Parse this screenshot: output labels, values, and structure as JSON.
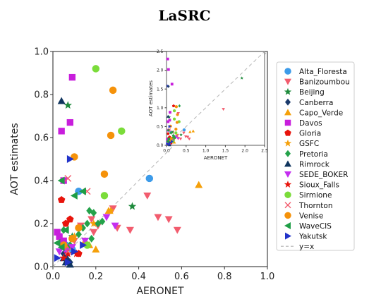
{
  "title": "LaSRC",
  "chart_data": {
    "type": "scatter",
    "title": "LaSRC",
    "xlabel": "AERONET",
    "ylabel": "AOT estimates",
    "xlim": [
      0,
      1.0
    ],
    "ylim": [
      0,
      1.0
    ],
    "xticks": [
      "0.0",
      "0.2",
      "0.4",
      "0.6",
      "0.8",
      "1.0"
    ],
    "yticks": [
      "0.0",
      "0.2",
      "0.4",
      "0.6",
      "0.8",
      "1.0"
    ],
    "grid": false,
    "legend_position": "right",
    "reference_line": {
      "name": "y=x",
      "style": "dashed",
      "color": "#b0b0b0"
    },
    "series": [
      {
        "name": "Alta_Floresta",
        "marker": "circle",
        "color": "#3d9be9",
        "points": [
          [
            0.45,
            0.41
          ],
          [
            0.12,
            0.35
          ],
          [
            0.06,
            0.1
          ],
          [
            0.09,
            0.08
          ]
        ]
      },
      {
        "name": "Banizoumbou",
        "marker": "triangle-down",
        "color": "#f25c6e",
        "points": [
          [
            0.58,
            0.17
          ],
          [
            0.54,
            0.22
          ],
          [
            0.49,
            0.23
          ],
          [
            0.44,
            0.33
          ],
          [
            0.36,
            0.17
          ],
          [
            0.3,
            0.18
          ],
          [
            0.28,
            0.27
          ],
          [
            0.21,
            0.19
          ],
          [
            0.19,
            0.16
          ],
          [
            0.18,
            0.22
          ],
          [
            0.13,
            0.19
          ],
          [
            0.1,
            0.12
          ],
          [
            0.07,
            0.09
          ]
        ]
      },
      {
        "name": "Beijing",
        "marker": "star",
        "color": "#1e8a3c",
        "points": [
          [
            0.07,
            0.75
          ],
          [
            0.37,
            0.28
          ],
          [
            0.09,
            0.14
          ]
        ]
      },
      {
        "name": "Canberra",
        "marker": "diamond",
        "color": "#1a3a6b",
        "points": [
          [
            0.07,
            0.03
          ],
          [
            0.06,
            0.05
          ],
          [
            0.08,
            0.02
          ],
          [
            0.05,
            0.06
          ]
        ]
      },
      {
        "name": "Capo_Verde",
        "marker": "triangle-up",
        "color": "#f5a00a",
        "points": [
          [
            0.68,
            0.38
          ],
          [
            0.26,
            0.26
          ],
          [
            0.17,
            0.1
          ],
          [
            0.2,
            0.08
          ],
          [
            0.15,
            0.12
          ]
        ]
      },
      {
        "name": "Davos",
        "marker": "square",
        "color": "#c81edc",
        "points": [
          [
            0.09,
            0.88
          ],
          [
            0.08,
            0.67
          ],
          [
            0.04,
            0.63
          ],
          [
            0.05,
            0.4
          ],
          [
            0.02,
            0.16
          ],
          [
            0.03,
            0.14
          ],
          [
            0.05,
            0.12
          ]
        ]
      },
      {
        "name": "Gloria",
        "marker": "pentagon",
        "color": "#e8140c",
        "points": [
          [
            0.04,
            0.31
          ],
          [
            0.08,
            0.22
          ],
          [
            0.12,
            0.06
          ],
          [
            0.06,
            0.2
          ]
        ]
      },
      {
        "name": "GSFC",
        "marker": "star",
        "color": "#f5a00a",
        "points": [
          [
            0.27,
            0.26
          ],
          [
            0.19,
            0.2
          ],
          [
            0.1,
            0.14
          ]
        ]
      },
      {
        "name": "Pretoria",
        "marker": "diamond",
        "color": "#24a24a",
        "points": [
          [
            0.17,
            0.26
          ],
          [
            0.19,
            0.25
          ],
          [
            0.23,
            0.21
          ],
          [
            0.21,
            0.2
          ],
          [
            0.16,
            0.2
          ],
          [
            0.14,
            0.18
          ],
          [
            0.05,
            0.17
          ],
          [
            0.12,
            0.15
          ],
          [
            0.18,
            0.13
          ],
          [
            0.08,
            0.1
          ]
        ]
      },
      {
        "name": "Rimrock",
        "marker": "triangle-up",
        "color": "#10355e",
        "points": [
          [
            0.04,
            0.77
          ],
          [
            0.06,
            0.02
          ],
          [
            0.08,
            0.01
          ],
          [
            0.05,
            0.04
          ]
        ]
      },
      {
        "name": "SEDE_BOKER",
        "marker": "triangle-down",
        "color": "#c42ef0",
        "points": [
          [
            0.25,
            0.23
          ],
          [
            0.29,
            0.19
          ],
          [
            0.15,
            0.12
          ],
          [
            0.09,
            0.09
          ],
          [
            0.06,
            0.07
          ],
          [
            0.03,
            0.07
          ]
        ]
      },
      {
        "name": "Sioux_Falls",
        "marker": "star",
        "color": "#e8140c",
        "points": [
          [
            0.05,
            0.04
          ],
          [
            0.07,
            0.06
          ],
          [
            0.11,
            0.06
          ]
        ]
      },
      {
        "name": "Sirmione",
        "marker": "circle",
        "color": "#7bdc3a",
        "points": [
          [
            0.2,
            0.92
          ],
          [
            0.32,
            0.63
          ],
          [
            0.24,
            0.33
          ],
          [
            0.16,
            0.1
          ]
        ]
      },
      {
        "name": "Thornton",
        "marker": "x",
        "color": "#f25c6e",
        "points": [
          [
            0.07,
            0.41
          ],
          [
            0.16,
            0.35
          ],
          [
            0.07,
            0.07
          ]
        ]
      },
      {
        "name": "Venise",
        "marker": "circle",
        "color": "#f5920a",
        "points": [
          [
            0.28,
            0.82
          ],
          [
            0.27,
            0.61
          ],
          [
            0.1,
            0.51
          ],
          [
            0.24,
            0.43
          ],
          [
            0.12,
            0.18
          ],
          [
            0.09,
            0.13
          ],
          [
            0.05,
            0.1
          ]
        ]
      },
      {
        "name": "WaveCIS",
        "marker": "triangle-left",
        "color": "#1e9e46",
        "points": [
          [
            0.14,
            0.35
          ],
          [
            0.1,
            0.33
          ],
          [
            0.04,
            0.4
          ],
          [
            0.06,
            0.17
          ],
          [
            0.02,
            0.11
          ],
          [
            0.04,
            0.09
          ]
        ]
      },
      {
        "name": "Yakutsk",
        "marker": "triangle-right",
        "color": "#2233c9",
        "points": [
          [
            0.08,
            0.5
          ],
          [
            0.14,
            0.1
          ],
          [
            0.1,
            0.07
          ],
          [
            0.02,
            0.04
          ],
          [
            0.07,
            0.02
          ]
        ]
      }
    ]
  },
  "inset_chart_data": {
    "type": "scatter",
    "xlabel": "AERONET",
    "ylabel": "AOT estimates",
    "xlim": [
      0,
      2.5
    ],
    "ylim": [
      0,
      2.5
    ],
    "xticks": [
      "0.0",
      "0.5",
      "1.0",
      "1.5",
      "2.0",
      "2.5"
    ],
    "yticks": [
      "0.0",
      "0.5",
      "1.0",
      "1.5",
      "2.0",
      "2.5"
    ],
    "extra_points": [
      {
        "series": "Davos",
        "marker": "square",
        "color": "#c81edc",
        "x": 0.03,
        "y": 2.3
      },
      {
        "series": "Davos",
        "marker": "square",
        "color": "#c81edc",
        "x": 0.05,
        "y": 2.02
      },
      {
        "series": "Yakutsk",
        "marker": "triangle-right",
        "color": "#2233c9",
        "x": 0.04,
        "y": 1.58
      },
      {
        "series": "Davos",
        "marker": "square",
        "color": "#c81edc",
        "x": 0.14,
        "y": 1.63
      },
      {
        "series": "Canberra",
        "marker": "diamond",
        "color": "#1a3a6b",
        "x": 0.05,
        "y": 1.57
      },
      {
        "series": "Banizoumbou",
        "marker": "triangle-down",
        "color": "#f25c6e",
        "x": 1.45,
        "y": 0.96
      },
      {
        "series": "Beijing",
        "marker": "star",
        "color": "#1e8a3c",
        "x": 1.92,
        "y": 1.79
      },
      {
        "series": "Gloria",
        "marker": "pentagon",
        "color": "#e8140c",
        "x": 0.18,
        "y": 1.05
      },
      {
        "series": "Venise",
        "marker": "circle",
        "color": "#f5920a",
        "x": 0.25,
        "y": 1.03
      },
      {
        "series": "Pretoria",
        "marker": "diamond",
        "color": "#24a24a",
        "x": 0.33,
        "y": 1.05
      },
      {
        "series": "Banizoumbou",
        "marker": "triangle-down",
        "color": "#f25c6e",
        "x": 0.3,
        "y": 0.85
      },
      {
        "series": "Capo_Verde",
        "marker": "triangle-up",
        "color": "#f5a00a",
        "x": 0.6,
        "y": 0.36
      },
      {
        "series": "Sirmione",
        "marker": "circle",
        "color": "#7bdc3a",
        "x": 0.2,
        "y": 0.7
      }
    ]
  },
  "legend_items": [
    {
      "label": "Alta_Floresta",
      "marker": "circle",
      "color": "#3d9be9"
    },
    {
      "label": "Banizoumbou",
      "marker": "triangle-down",
      "color": "#f25c6e"
    },
    {
      "label": "Beijing",
      "marker": "star",
      "color": "#1e8a3c"
    },
    {
      "label": "Canberra",
      "marker": "diamond",
      "color": "#1a3a6b"
    },
    {
      "label": "Capo_Verde",
      "marker": "triangle-up",
      "color": "#f5a00a"
    },
    {
      "label": "Davos",
      "marker": "square",
      "color": "#c81edc"
    },
    {
      "label": "Gloria",
      "marker": "pentagon",
      "color": "#e8140c"
    },
    {
      "label": "GSFC",
      "marker": "star",
      "color": "#f5a00a"
    },
    {
      "label": "Pretoria",
      "marker": "diamond",
      "color": "#24a24a"
    },
    {
      "label": "Rimrock",
      "marker": "triangle-up",
      "color": "#10355e"
    },
    {
      "label": "SEDE_BOKER",
      "marker": "triangle-down",
      "color": "#c42ef0"
    },
    {
      "label": "Sioux_Falls",
      "marker": "star",
      "color": "#e8140c"
    },
    {
      "label": "Sirmione",
      "marker": "circle",
      "color": "#7bdc3a"
    },
    {
      "label": "Thornton",
      "marker": "x",
      "color": "#f25c6e"
    },
    {
      "label": "Venise",
      "marker": "circle",
      "color": "#f5920a"
    },
    {
      "label": "WaveCIS",
      "marker": "triangle-left",
      "color": "#1e9e46"
    },
    {
      "label": "Yakutsk",
      "marker": "triangle-right",
      "color": "#2233c9"
    },
    {
      "label": "y=x",
      "marker": "dashed-line",
      "color": "#b0b0b0"
    }
  ]
}
